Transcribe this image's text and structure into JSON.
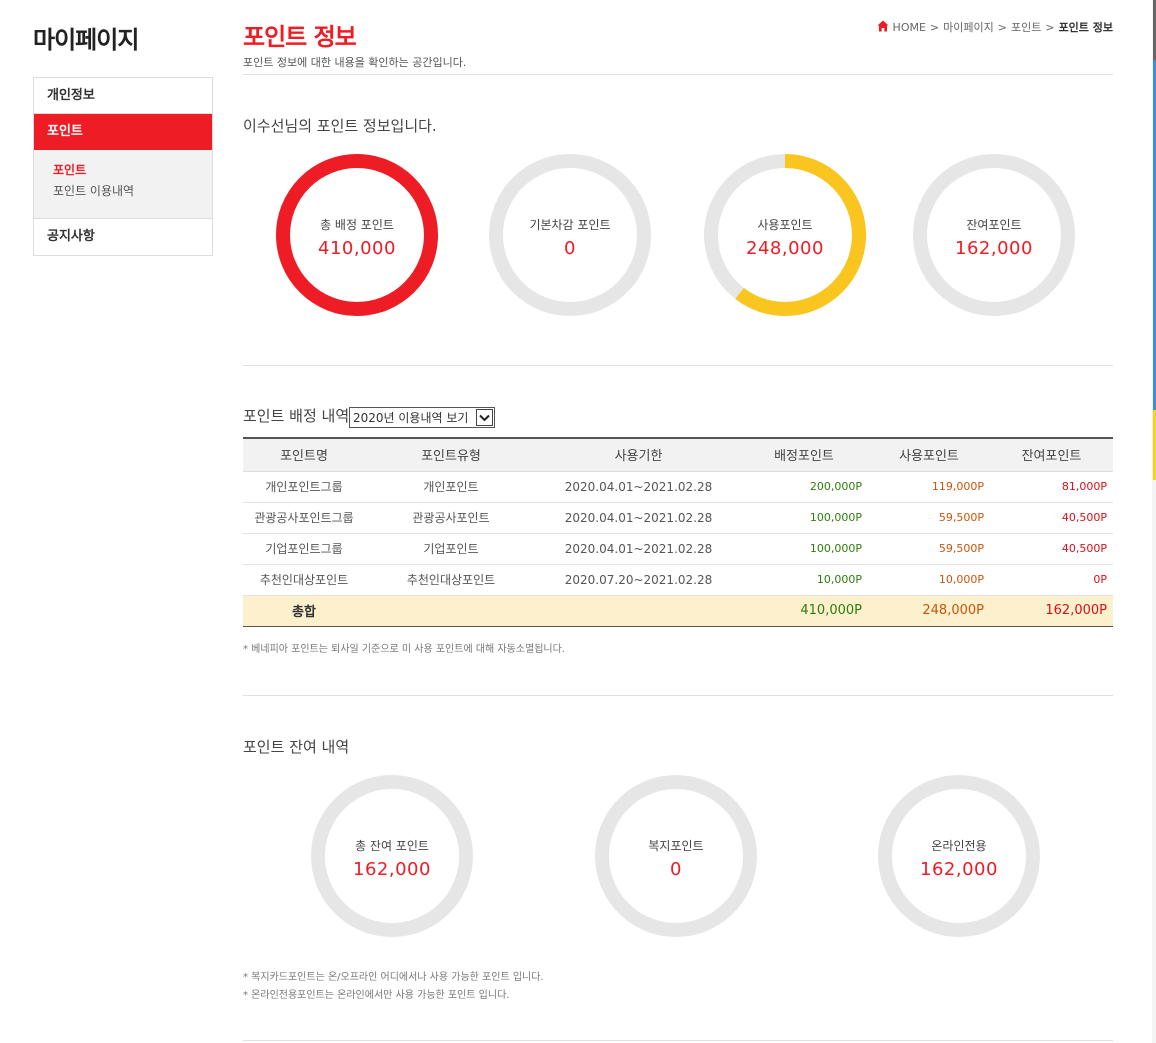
{
  "sidebar": {
    "title": "마이페이지",
    "items": [
      {
        "label": "개인정보"
      },
      {
        "label": "포인트"
      },
      {
        "label": "공지사항"
      }
    ],
    "sub_items": [
      {
        "label": "포인트"
      },
      {
        "label": "포인트 이용내역"
      }
    ]
  },
  "header": {
    "title": "포인트 정보",
    "description": "포인트 정보에 대한 내용을 확인하는 공간입니다.",
    "breadcrumb": [
      "HOME",
      "마이페이지",
      "포인트",
      "포인트 정보"
    ],
    "breadcrumb_sep": ">"
  },
  "summary": {
    "heading": "이수선님의 포인트 정보입니다.",
    "cards": [
      {
        "label": "총 배정 포인트",
        "value": "410,000",
        "fill": 1.0,
        "color": "#ee1c25"
      },
      {
        "label": "기본차감 포인트",
        "value": "0",
        "fill": 0.0,
        "color": "#e6e6e6"
      },
      {
        "label": "사용포인트",
        "value": "248,000",
        "fill": 0.605,
        "color": "#fbc520"
      },
      {
        "label": "잔여포인트",
        "value": "162,000",
        "fill": 0.0,
        "color": "#e6e6e6"
      }
    ]
  },
  "allocation": {
    "heading": "포인트 배정 내역",
    "year_select": "2020년 이용내역 보기",
    "columns": [
      "포인트명",
      "포인트유형",
      "사용기한",
      "배정포인트",
      "사용포인트",
      "잔여포인트"
    ],
    "rows": [
      [
        "개인포인트그룹",
        "개인포인트",
        "2020.04.01~2021.02.28",
        "200,000P",
        "119,000P",
        "81,000P"
      ],
      [
        "관광공사포인트그룹",
        "관광공사포인트",
        "2020.04.01~2021.02.28",
        "100,000P",
        "59,500P",
        "40,500P"
      ],
      [
        "기업포인트그룹",
        "기업포인트",
        "2020.04.01~2021.02.28",
        "100,000P",
        "59,500P",
        "40,500P"
      ],
      [
        "추천인대상포인트",
        "추천인대상포인트",
        "2020.07.20~2021.02.28",
        "10,000P",
        "10,000P",
        "0P"
      ]
    ],
    "total": {
      "label": "총합",
      "assigned": "410,000P",
      "used": "248,000P",
      "remaining": "162,000P"
    },
    "note": "* 베네피아 포인트는 퇴사일 기준으로 미 사용 포인트에 대해 자동소멸됩니다."
  },
  "balance": {
    "heading": "포인트 잔여 내역",
    "cards": [
      {
        "label": "총 잔여 포인트",
        "value": "162,000"
      },
      {
        "label": "복지포인트",
        "value": "0"
      },
      {
        "label": "온라인전용",
        "value": "162,000"
      }
    ],
    "notes": [
      "* 복지카드포인트는 온/오프라인 어디에서나 사용 가능한 포인트 입니다.",
      "* 온라인전용포인트는 온라인에서만 사용 가능한 포인트 입니다."
    ]
  },
  "colors": {
    "accent": "#ee1c25",
    "used": "#fbc520",
    "ring_bg": "#e6e6e6"
  }
}
